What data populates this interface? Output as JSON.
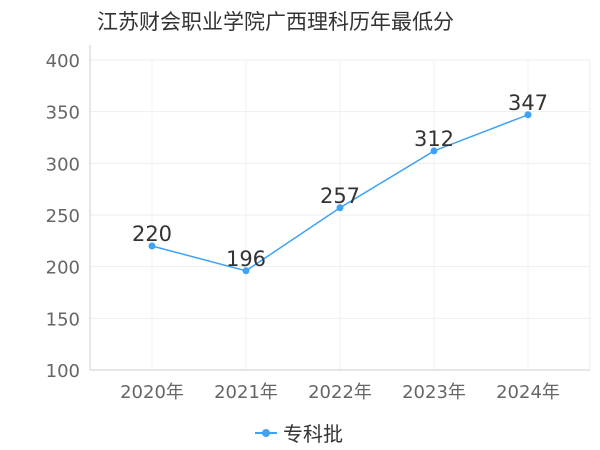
{
  "chart_data": {
    "type": "line",
    "title": "江苏财会职业学院广西理科历年最低分",
    "xlabel": "",
    "ylabel": "",
    "categories": [
      "2020年",
      "2021年",
      "2022年",
      "2023年",
      "2024年"
    ],
    "series": [
      {
        "name": "专科批",
        "values": [
          220,
          196,
          257,
          312,
          347
        ],
        "color": "#3fa2f4"
      }
    ],
    "ylim": [
      100,
      400
    ],
    "yticks": [
      100,
      150,
      200,
      250,
      300,
      350,
      400
    ],
    "grid": true,
    "legend": "bottom",
    "data_labels": true
  }
}
